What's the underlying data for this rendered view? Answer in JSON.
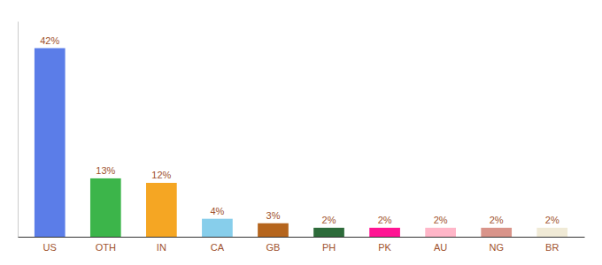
{
  "chart_data": {
    "type": "bar",
    "categories": [
      "US",
      "OTH",
      "IN",
      "CA",
      "GB",
      "PH",
      "PK",
      "AU",
      "NG",
      "BR"
    ],
    "values": [
      42,
      13,
      12,
      4,
      3,
      2,
      2,
      2,
      2,
      2
    ],
    "value_labels": [
      "42%",
      "13%",
      "12%",
      "4%",
      "3%",
      "2%",
      "2%",
      "2%",
      "2%",
      "2%"
    ],
    "colors": [
      "#5b7de8",
      "#3cb54a",
      "#f5a623",
      "#87ceeb",
      "#b5651d",
      "#2d6b3a",
      "#ff1493",
      "#ffb6c8",
      "#d9948a",
      "#f0ead6"
    ],
    "ylim": [
      0,
      48
    ],
    "data_labels": true,
    "tick_labels": "x",
    "grid": false
  }
}
